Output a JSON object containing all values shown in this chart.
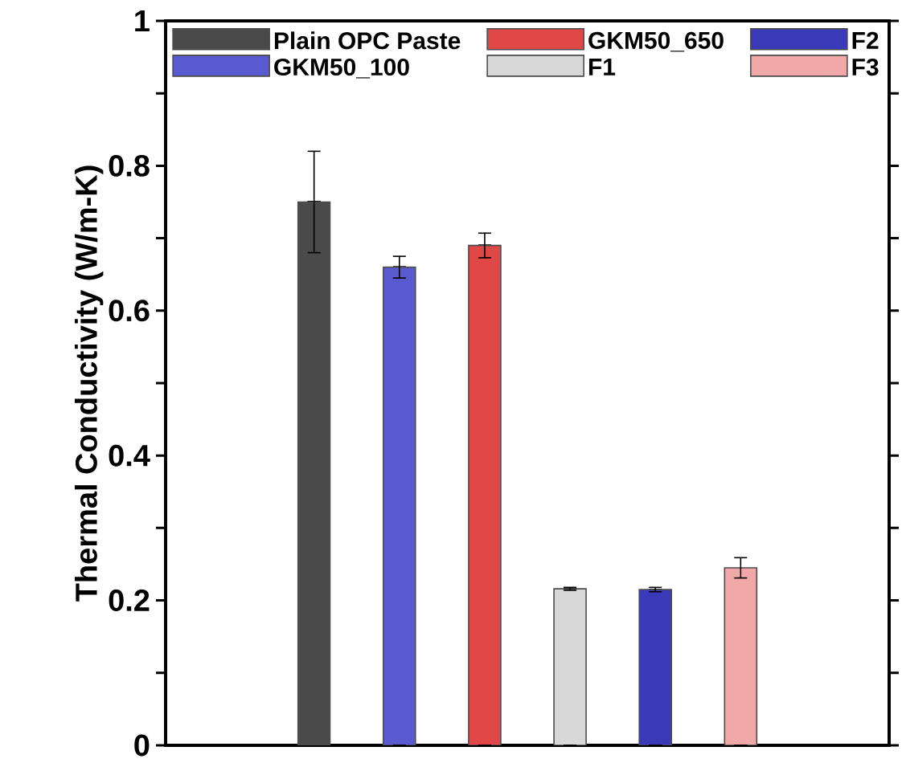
{
  "chart_data": {
    "type": "bar",
    "ylabel": "Thermal Conductivity (W/m-K)",
    "categories": [
      null,
      null,
      null,
      null,
      null,
      null
    ],
    "series": [
      {
        "name": "Plain OPC Paste",
        "color": "#4a4a4a",
        "values": [
          0.75,
          null,
          null,
          null,
          null,
          null
        ],
        "errors": [
          0.07,
          null,
          null,
          null,
          null,
          null
        ]
      },
      {
        "name": "GKM50_100",
        "color": "#5a5ad0",
        "values": [
          null,
          0.66,
          null,
          null,
          null,
          null
        ],
        "errors": [
          null,
          0.015,
          null,
          null,
          null,
          null
        ]
      },
      {
        "name": "GKM50_650",
        "color": "#e04848",
        "values": [
          null,
          null,
          0.69,
          null,
          null,
          null
        ],
        "errors": [
          null,
          null,
          0.017,
          null,
          null,
          null
        ]
      },
      {
        "name": "F1",
        "color": "#d8d8d8",
        "values": [
          null,
          null,
          null,
          0.216,
          null,
          null
        ],
        "errors": [
          null,
          null,
          null,
          0.002,
          null,
          null
        ]
      },
      {
        "name": "F2",
        "color": "#3a3ab8",
        "values": [
          null,
          null,
          null,
          null,
          0.215,
          null
        ],
        "errors": [
          null,
          null,
          null,
          null,
          0.003,
          null
        ]
      },
      {
        "name": "F3",
        "color": "#f0a8a8",
        "values": [
          null,
          null,
          null,
          null,
          null,
          0.245
        ],
        "errors": [
          null,
          null,
          null,
          null,
          null,
          0.014
        ]
      }
    ],
    "ylim": [
      0,
      1
    ],
    "yticks": [
      0,
      0.2,
      0.4,
      0.6,
      0.8,
      1
    ],
    "stacked": true,
    "legend": "top",
    "tick_labels": "y"
  }
}
